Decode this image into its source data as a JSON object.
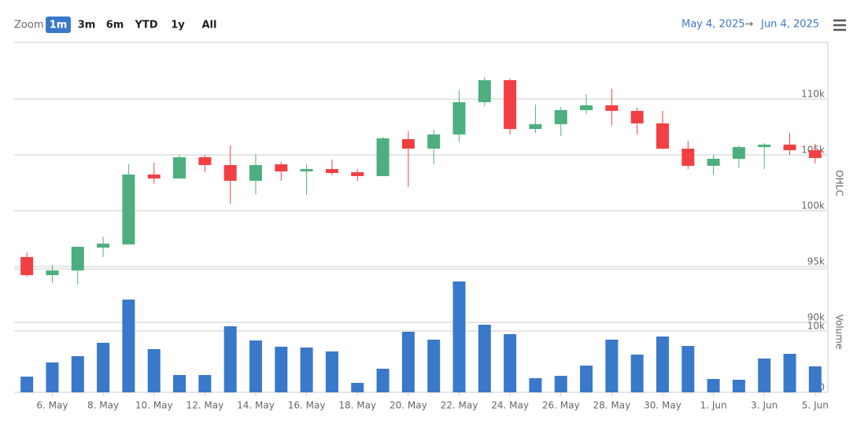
{
  "toolbar": {
    "zoom_label": "Zoom",
    "buttons": [
      "1m",
      "3m",
      "6m",
      "YTD",
      "1y",
      "All"
    ],
    "selected": 0,
    "range_from": "May 4, 2025",
    "arrow": "→",
    "range_to": "Jun 4, 2025"
  },
  "chart_data": {
    "type": "candlestick",
    "categories": [
      null,
      "6. May",
      null,
      "8. May",
      null,
      "10. May",
      null,
      "12. May",
      null,
      "14. May",
      null,
      "16. May",
      null,
      "18. May",
      null,
      "20. May",
      null,
      "22. May",
      null,
      "24. May",
      null,
      "26. May",
      null,
      "28. May",
      null,
      "30. May",
      null,
      "1. Jun",
      null,
      "3. Jun",
      null,
      "5. Jun"
    ],
    "open": [
      95850,
      94230,
      94650,
      96700,
      96980,
      103240,
      102890,
      104790,
      104090,
      102680,
      104160,
      103520,
      103730,
      103450,
      103100,
      106410,
      105560,
      106830,
      109720,
      111690,
      107320,
      107750,
      109010,
      109440,
      108940,
      107820,
      105560,
      104020,
      104650,
      105700,
      105920,
      105420
    ],
    "high": [
      96270,
      95150,
      96770,
      97680,
      104160,
      104300,
      105000,
      105000,
      105850,
      105070,
      104370,
      104160,
      104580,
      103730,
      106620,
      107110,
      107250,
      110770,
      111970,
      111830,
      109510,
      109300,
      110420,
      110920,
      109230,
      108940,
      106270,
      105000,
      105850,
      106060,
      106970,
      105990
    ],
    "low": [
      94090,
      93530,
      93390,
      95850,
      96980,
      102400,
      102890,
      103450,
      100640,
      101480,
      102680,
      101410,
      103170,
      102680,
      103100,
      102120,
      104160,
      106200,
      109370,
      106830,
      106970,
      106690,
      108660,
      107610,
      106830,
      105490,
      103730,
      103240,
      103870,
      103730,
      105000,
      104230
    ],
    "close": [
      94230,
      94650,
      96770,
      97050,
      103240,
      102890,
      104790,
      104090,
      102680,
      104090,
      103520,
      103730,
      103380,
      103100,
      106480,
      105560,
      106830,
      109720,
      111690,
      107320,
      107750,
      109010,
      109440,
      108940,
      107820,
      105560,
      104020,
      104650,
      105700,
      105920,
      105420,
      104720
    ],
    "volume": [
      2560,
      4870,
      5900,
      8080,
      15130,
      7050,
      2820,
      2820,
      10770,
      8460,
      7440,
      7310,
      6670,
      1540,
      3850,
      9870,
      8590,
      18080,
      11030,
      9490,
      2310,
      2690,
      4360,
      8590,
      6150,
      9100,
      7560,
      2180,
      2050,
      5510,
      6280,
      4230
    ],
    "up_color": "#4caf7d",
    "down_color": "#f23f43",
    "volume_color": "#3a78c9",
    "y_title": "OHLC",
    "volume_title": "Volume",
    "ylim": [
      90000,
      115000
    ],
    "yticks": [
      {
        "value": 90000,
        "label": "90k"
      },
      {
        "value": 95000,
        "label": "95k"
      },
      {
        "value": 100000,
        "label": "100k"
      },
      {
        "value": 105000,
        "label": "105k"
      },
      {
        "value": 110000,
        "label": "110k"
      }
    ],
    "volume_ylim": [
      0,
      20000
    ],
    "volume_yticks": [
      0,
      {
        "value": 10000,
        "label": "10k"
      }
    ],
    "grid": true
  }
}
